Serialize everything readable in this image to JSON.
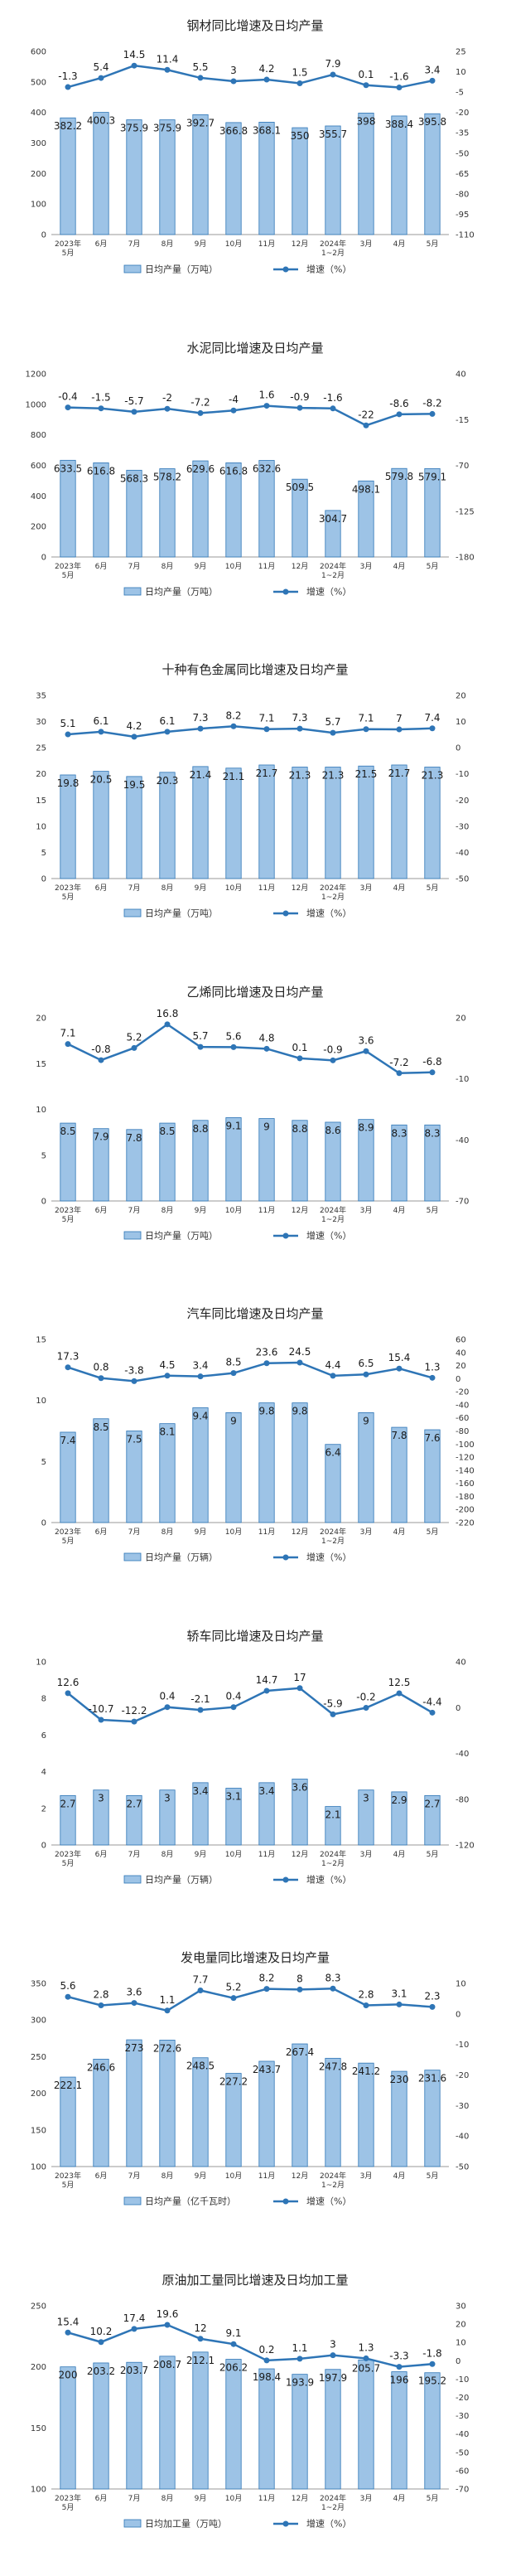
{
  "colors": {
    "bar_fill": "#9dc3e6",
    "bar_stroke": "#2e75b6",
    "line": "#2e75b6",
    "axis": "#999999"
  },
  "chart_data": [
    {
      "type": "bar",
      "title": "钢材同比增速及日均产量",
      "categories": [
        [
          "2023年",
          "5月"
        ],
        [
          "6月"
        ],
        [
          "7月"
        ],
        [
          "8月"
        ],
        [
          "9月"
        ],
        [
          "10月"
        ],
        [
          "11月"
        ],
        [
          "12月"
        ],
        [
          "2024年",
          "1~2月"
        ],
        [
          "3月"
        ],
        [
          "4月"
        ],
        [
          "5月"
        ]
      ],
      "series": [
        {
          "name": "日均产量（万吨）",
          "values": [
            382.2,
            400.3,
            375.9,
            375.9,
            392.7,
            366.8,
            368.1,
            350.0,
            355.7,
            398.0,
            388.4,
            395.8
          ],
          "axis": "left"
        },
        {
          "name": "增速（%）",
          "values": [
            -1.3,
            5.4,
            14.5,
            11.4,
            5.5,
            3.0,
            4.2,
            1.5,
            7.9,
            0.1,
            -1.6,
            3.4
          ],
          "axis": "right"
        }
      ],
      "left_axis": {
        "min": 0,
        "max": 600,
        "ticks": [
          0,
          100,
          200,
          300,
          400,
          500,
          600
        ]
      },
      "right_axis": {
        "min": -110,
        "max": 25,
        "ticks": [
          25,
          10,
          -5,
          -20,
          -35,
          -50,
          -65,
          -80,
          -95,
          -110
        ]
      }
    },
    {
      "type": "bar",
      "title": "水泥同比增速及日均产量",
      "categories": [
        [
          "2023年",
          "5月"
        ],
        [
          "6月"
        ],
        [
          "7月"
        ],
        [
          "8月"
        ],
        [
          "9月"
        ],
        [
          "10月"
        ],
        [
          "11月"
        ],
        [
          "12月"
        ],
        [
          "2024年",
          "1~2月"
        ],
        [
          "3月"
        ],
        [
          "4月"
        ],
        [
          "5月"
        ]
      ],
      "series": [
        {
          "name": "日均产量（万吨）",
          "values": [
            633.5,
            616.8,
            568.3,
            578.2,
            629.6,
            616.8,
            632.6,
            509.5,
            304.7,
            498.1,
            579.8,
            579.1
          ],
          "axis": "left"
        },
        {
          "name": "增速（%）",
          "values": [
            -0.4,
            -1.5,
            -5.7,
            -2.0,
            -7.2,
            -4.0,
            1.6,
            -0.9,
            -1.6,
            -22.0,
            -8.6,
            -8.2
          ],
          "axis": "right"
        }
      ],
      "left_axis": {
        "min": 0,
        "max": 1200,
        "ticks": [
          0,
          200,
          400,
          600,
          800,
          1000,
          1200
        ]
      },
      "right_axis": {
        "min": -180,
        "max": 40,
        "ticks": [
          40,
          -15,
          -70,
          -125,
          -180
        ]
      }
    },
    {
      "type": "bar",
      "title": "十种有色金属同比增速及日均产量",
      "categories": [
        [
          "2023年",
          "5月"
        ],
        [
          "6月"
        ],
        [
          "7月"
        ],
        [
          "8月"
        ],
        [
          "9月"
        ],
        [
          "10月"
        ],
        [
          "11月"
        ],
        [
          "12月"
        ],
        [
          "2024年",
          "1~2月"
        ],
        [
          "3月"
        ],
        [
          "4月"
        ],
        [
          "5月"
        ]
      ],
      "series": [
        {
          "name": "日均产量（万吨）",
          "values": [
            19.8,
            20.5,
            19.5,
            20.3,
            21.4,
            21.1,
            21.7,
            21.3,
            21.3,
            21.5,
            21.7,
            21.3
          ],
          "axis": "left"
        },
        {
          "name": "增速（%）",
          "values": [
            5.1,
            6.1,
            4.2,
            6.1,
            7.3,
            8.2,
            7.1,
            7.3,
            5.7,
            7.1,
            7.0,
            7.4
          ],
          "axis": "right"
        }
      ],
      "left_axis": {
        "min": 0,
        "max": 35,
        "ticks": [
          0,
          5,
          10,
          15,
          20,
          25,
          30,
          35
        ]
      },
      "right_axis": {
        "min": -50,
        "max": 20,
        "ticks": [
          20,
          10,
          0,
          -10,
          -20,
          -30,
          -40,
          -50
        ]
      }
    },
    {
      "type": "bar",
      "title": "乙烯同比增速及日均产量",
      "categories": [
        [
          "2023年",
          "5月"
        ],
        [
          "6月"
        ],
        [
          "7月"
        ],
        [
          "8月"
        ],
        [
          "9月"
        ],
        [
          "10月"
        ],
        [
          "11月"
        ],
        [
          "12月"
        ],
        [
          "2024年",
          "1~2月"
        ],
        [
          "3月"
        ],
        [
          "4月"
        ],
        [
          "5月"
        ]
      ],
      "series": [
        {
          "name": "日均产量（万吨）",
          "values": [
            8.5,
            7.9,
            7.8,
            8.5,
            8.8,
            9.1,
            9.0,
            8.8,
            8.6,
            8.9,
            8.3,
            8.3
          ],
          "axis": "left"
        },
        {
          "name": "增速（%）",
          "values": [
            7.1,
            -0.8,
            5.2,
            16.8,
            5.7,
            5.6,
            4.8,
            0.1,
            -0.9,
            3.6,
            -7.2,
            -6.8
          ],
          "axis": "right"
        }
      ],
      "left_axis": {
        "min": 0,
        "max": 20,
        "ticks": [
          0,
          5,
          10,
          15,
          20
        ]
      },
      "right_axis": {
        "min": -70,
        "max": 20,
        "ticks": [
          20,
          -10,
          -40,
          -70
        ]
      }
    },
    {
      "type": "bar",
      "title": "汽车同比增速及日均产量",
      "categories": [
        [
          "2023年",
          "5月"
        ],
        [
          "6月"
        ],
        [
          "7月"
        ],
        [
          "8月"
        ],
        [
          "9月"
        ],
        [
          "10月"
        ],
        [
          "11月"
        ],
        [
          "12月"
        ],
        [
          "2024年",
          "1~2月"
        ],
        [
          "3月"
        ],
        [
          "4月"
        ],
        [
          "5月"
        ]
      ],
      "series": [
        {
          "name": "日均产量（万辆）",
          "values": [
            7.4,
            8.5,
            7.5,
            8.1,
            9.4,
            9.0,
            9.8,
            9.8,
            6.4,
            9.0,
            7.8,
            7.6
          ],
          "axis": "left"
        },
        {
          "name": "增速（%）",
          "values": [
            17.3,
            0.8,
            -3.8,
            4.5,
            3.4,
            8.5,
            23.6,
            24.5,
            4.4,
            6.5,
            15.4,
            1.3
          ],
          "axis": "right"
        }
      ],
      "left_axis": {
        "min": 0,
        "max": 15,
        "ticks": [
          0,
          5,
          10,
          15
        ]
      },
      "right_axis": {
        "min": -220,
        "max": 60,
        "ticks": [
          60,
          40,
          20,
          0,
          -20,
          -40,
          -60,
          -80,
          -100,
          -120,
          -140,
          -160,
          -180,
          -200,
          -220
        ]
      }
    },
    {
      "type": "bar",
      "title": "轿车同比增速及日均产量",
      "categories": [
        [
          "2023年",
          "5月"
        ],
        [
          "6月"
        ],
        [
          "7月"
        ],
        [
          "8月"
        ],
        [
          "9月"
        ],
        [
          "10月"
        ],
        [
          "11月"
        ],
        [
          "12月"
        ],
        [
          "2024年",
          "1~2月"
        ],
        [
          "3月"
        ],
        [
          "4月"
        ],
        [
          "5月"
        ]
      ],
      "series": [
        {
          "name": "日均产量（万辆）",
          "values": [
            2.7,
            3.0,
            2.7,
            3.0,
            3.4,
            3.1,
            3.4,
            3.6,
            2.1,
            3.0,
            2.9,
            2.7
          ],
          "axis": "left"
        },
        {
          "name": "增速（%）",
          "values": [
            12.6,
            -10.7,
            -12.2,
            0.4,
            -2.1,
            0.4,
            14.7,
            17.0,
            -5.9,
            -0.2,
            12.5,
            -4.4
          ],
          "axis": "right"
        }
      ],
      "left_axis": {
        "min": 0,
        "max": 10,
        "ticks": [
          0,
          2,
          4,
          6,
          8,
          10
        ]
      },
      "right_axis": {
        "min": -120,
        "max": 40,
        "ticks": [
          40,
          0,
          -40,
          -80,
          -120
        ]
      }
    },
    {
      "type": "bar",
      "title": "发电量同比增速及日均产量",
      "categories": [
        [
          "2023年",
          "5月"
        ],
        [
          "6月"
        ],
        [
          "7月"
        ],
        [
          "8月"
        ],
        [
          "9月"
        ],
        [
          "10月"
        ],
        [
          "11月"
        ],
        [
          "12月"
        ],
        [
          "2024年",
          "1~2月"
        ],
        [
          "3月"
        ],
        [
          "4月"
        ],
        [
          "5月"
        ]
      ],
      "series": [
        {
          "name": "日均产量（亿千瓦时）",
          "values": [
            222.1,
            246.6,
            273.0,
            272.6,
            248.5,
            227.2,
            243.7,
            267.4,
            247.8,
            241.2,
            230.0,
            231.6
          ],
          "axis": "left"
        },
        {
          "name": "增速（%）",
          "values": [
            5.6,
            2.8,
            3.6,
            1.1,
            7.7,
            5.2,
            8.2,
            8.0,
            8.3,
            2.8,
            3.1,
            2.3
          ],
          "axis": "right"
        }
      ],
      "left_axis": {
        "min": 100,
        "max": 350,
        "ticks": [
          100,
          150,
          200,
          250,
          300,
          350
        ]
      },
      "right_axis": {
        "min": -50,
        "max": 10,
        "ticks": [
          10,
          0,
          -10,
          -20,
          -30,
          -40,
          -50
        ]
      }
    },
    {
      "type": "bar",
      "title": "原油加工量同比增速及日均加工量",
      "categories": [
        [
          "2023年",
          "5月"
        ],
        [
          "6月"
        ],
        [
          "7月"
        ],
        [
          "8月"
        ],
        [
          "9月"
        ],
        [
          "10月"
        ],
        [
          "11月"
        ],
        [
          "12月"
        ],
        [
          "2024年",
          "1~2月"
        ],
        [
          "3月"
        ],
        [
          "4月"
        ],
        [
          "5月"
        ]
      ],
      "series": [
        {
          "name": "日均加工量（万吨）",
          "values": [
            200.0,
            203.2,
            203.7,
            208.7,
            212.1,
            206.2,
            198.4,
            193.9,
            197.9,
            205.7,
            196.0,
            195.2
          ],
          "axis": "left"
        },
        {
          "name": "增速（%）",
          "values": [
            15.4,
            10.2,
            17.4,
            19.6,
            12.0,
            9.1,
            0.2,
            1.1,
            3.0,
            1.3,
            -3.3,
            -1.8
          ],
          "axis": "right"
        }
      ],
      "left_axis": {
        "min": 100,
        "max": 250,
        "ticks": [
          100,
          150,
          200,
          250
        ]
      },
      "right_axis": {
        "min": -70,
        "max": 30,
        "ticks": [
          30,
          20,
          10,
          0,
          -10,
          -20,
          -30,
          -40,
          -50,
          -60,
          -70
        ]
      }
    }
  ]
}
